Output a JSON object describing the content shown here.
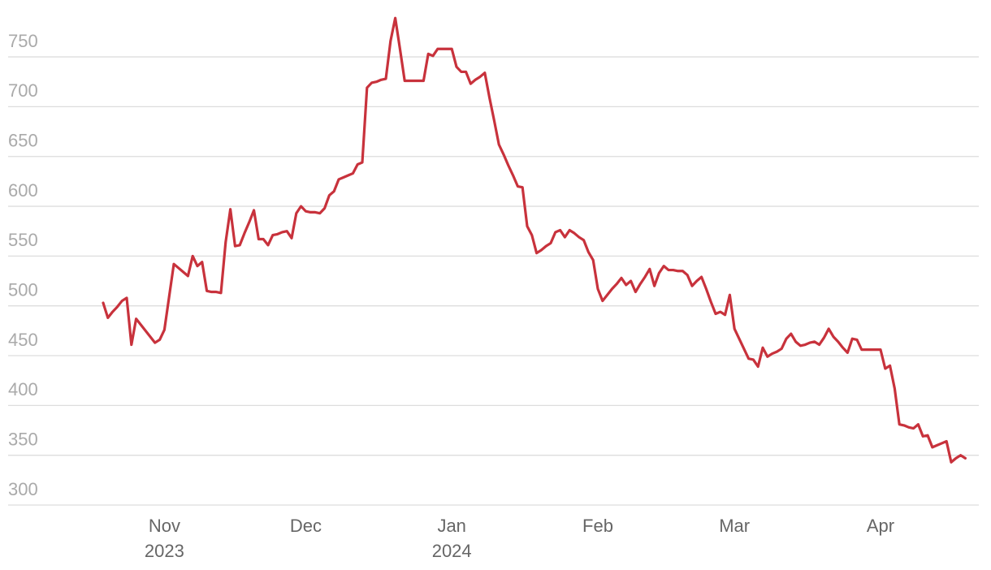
{
  "chart_data": {
    "type": "line",
    "categories": [
      null,
      null,
      null,
      null,
      null,
      null,
      null,
      null,
      null,
      null,
      null,
      null,
      null,
      "Nov\n2023",
      null,
      null,
      null,
      null,
      null,
      null,
      null,
      null,
      null,
      null,
      null,
      null,
      null,
      null,
      null,
      null,
      null,
      null,
      null,
      null,
      null,
      null,
      null,
      null,
      null,
      null,
      null,
      null,
      null,
      "Dec",
      null,
      null,
      null,
      null,
      null,
      null,
      null,
      null,
      null,
      null,
      null,
      null,
      null,
      null,
      null,
      null,
      null,
      null,
      null,
      null,
      null,
      null,
      null,
      null,
      null,
      null,
      null,
      null,
      null,
      null,
      "Jan\n2024",
      null,
      null,
      null,
      null,
      null,
      null,
      null,
      null,
      null,
      null,
      null,
      null,
      null,
      null,
      null,
      null,
      null,
      null,
      null,
      null,
      null,
      null,
      null,
      null,
      null,
      null,
      null,
      null,
      null,
      null,
      "Feb",
      null,
      null,
      null,
      null,
      null,
      null,
      null,
      null,
      null,
      null,
      null,
      null,
      null,
      null,
      null,
      null,
      null,
      null,
      null,
      null,
      null,
      null,
      null,
      null,
      null,
      null,
      null,
      null,
      "Mar",
      null,
      null,
      null,
      null,
      null,
      null,
      null,
      null,
      null,
      null,
      null,
      null,
      null,
      null,
      null,
      null,
      null,
      null,
      null,
      null,
      null,
      null,
      null,
      null,
      null,
      null,
      null,
      null,
      null,
      null,
      "Apr",
      null,
      null,
      null,
      null,
      null,
      null,
      null,
      null,
      null,
      null,
      null,
      null,
      null,
      null,
      null,
      null,
      null,
      null
    ],
    "values": [
      503,
      488,
      494,
      499,
      505,
      508,
      461,
      487,
      481,
      475,
      469,
      463,
      466,
      476,
      509,
      542,
      538,
      534,
      530,
      550,
      540,
      544,
      515,
      514,
      514,
      513,
      564,
      597,
      560,
      561,
      573,
      584,
      596,
      567,
      567,
      561,
      571,
      572,
      574,
      575,
      568,
      593,
      600,
      595,
      594,
      594,
      593,
      598,
      611,
      615,
      627,
      629,
      631,
      633,
      642,
      644,
      719,
      724,
      725,
      727,
      728,
      766,
      789,
      758,
      726,
      726,
      726,
      726,
      726,
      753,
      751,
      758,
      758,
      758,
      758,
      740,
      735,
      735,
      723,
      727,
      730,
      734,
      709,
      686,
      662,
      652,
      641,
      631,
      620,
      619,
      580,
      571,
      553,
      556,
      560,
      563,
      574,
      576,
      569,
      576,
      573,
      569,
      566,
      554,
      546,
      517,
      505,
      511,
      517,
      522,
      528,
      521,
      525,
      514,
      522,
      529,
      537,
      520,
      533,
      540,
      536,
      536,
      535,
      535,
      531,
      520,
      525,
      529,
      517,
      504,
      492,
      494,
      491,
      511,
      477,
      467,
      457,
      447,
      446,
      439,
      458,
      449,
      452,
      454,
      457,
      467,
      472,
      464,
      460,
      461,
      463,
      464,
      461,
      468,
      477,
      469,
      464,
      458,
      453,
      467,
      466,
      456,
      456,
      456,
      456,
      456,
      437,
      440,
      417,
      381,
      380,
      378,
      377,
      381,
      369,
      370,
      358,
      360,
      362,
      364,
      343,
      347,
      350,
      347
    ],
    "color": "#c8323c",
    "ylim": [
      300,
      790
    ],
    "yticks": [
      300,
      350,
      400,
      450,
      500,
      550,
      600,
      650,
      700,
      750
    ],
    "grid": true
  }
}
